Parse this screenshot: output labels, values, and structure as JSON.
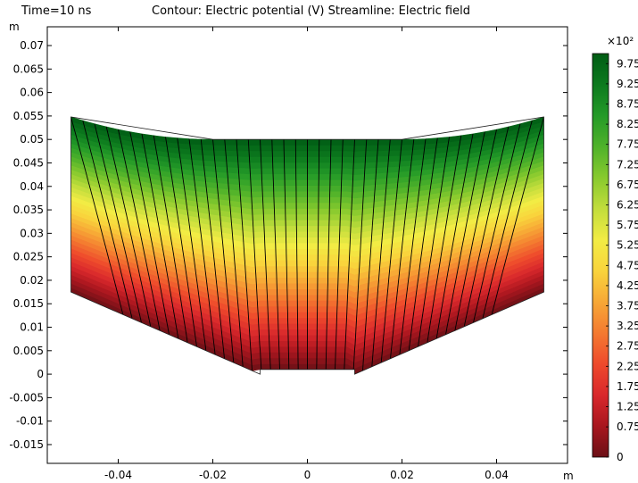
{
  "header": {
    "time": "Time=10 ns",
    "title": "Contour: Electric potential (V)  Streamline: Electric field"
  },
  "chart_data": {
    "type": "heatmap",
    "title": "Contour: Electric potential (V)  Streamline: Electric field",
    "xlabel": "m",
    "ylabel": "m",
    "xlim": [
      -0.055,
      0.055
    ],
    "ylim": [
      -0.019,
      0.074
    ],
    "x_ticks": [
      "-0.04",
      "-0.02",
      "0",
      "0.02",
      "0.04"
    ],
    "x_tick_values": [
      -0.04,
      -0.02,
      0,
      0.02,
      0.04
    ],
    "y_ticks": [
      "0.07",
      "0.065",
      "0.06",
      "0.055",
      "0.05",
      "0.045",
      "0.04",
      "0.035",
      "0.03",
      "0.025",
      "0.02",
      "0.015",
      "0.01",
      "0.005",
      "0",
      "-0.005",
      "-0.01",
      "-0.015"
    ],
    "y_tick_values": [
      0.07,
      0.065,
      0.06,
      0.055,
      0.05,
      0.045,
      0.04,
      0.035,
      0.03,
      0.025,
      0.02,
      0.015,
      0.01,
      0.005,
      0,
      -0.005,
      -0.01,
      -0.015
    ],
    "domain_outline": [
      [
        -0.05,
        0.0175
      ],
      [
        -0.05,
        0.0548
      ],
      [
        -0.02,
        0.05
      ],
      [
        0.02,
        0.05
      ],
      [
        0.05,
        0.0548
      ],
      [
        0.05,
        0.0175
      ],
      [
        0.01,
        0
      ],
      [
        0.01,
        0.001
      ],
      [
        -0.01,
        0.001
      ],
      [
        -0.01,
        0
      ]
    ],
    "electrode_high": {
      "potential": 1000,
      "boundary": "top arc"
    },
    "electrode_ground": {
      "potential": 0,
      "boundary": "bottom"
    },
    "contour_levels": [
      0,
      25,
      50,
      75,
      100,
      125,
      150,
      175,
      200,
      225,
      250,
      275,
      300,
      325,
      350,
      375,
      400,
      425,
      450,
      475,
      500,
      525,
      550,
      575,
      600,
      625,
      650,
      675,
      700,
      725,
      750,
      775,
      800,
      825,
      850,
      875,
      900,
      925,
      950,
      975,
      1000
    ],
    "streamline_count": 41,
    "colormap": [
      "#6b1016",
      "#a8161e",
      "#d9282c",
      "#ee4a2c",
      "#f47a30",
      "#f7a836",
      "#f9d43c",
      "#f2ec44",
      "#c2dd3c",
      "#88ca2e",
      "#4fb22a",
      "#249a28",
      "#0c7a1e",
      "#005c14"
    ],
    "colorbar": {
      "multiplier": "×10²",
      "labels": [
        "9.75",
        "9.25",
        "8.75",
        "8.25",
        "7.75",
        "7.25",
        "6.75",
        "6.25",
        "5.75",
        "5.25",
        "4.75",
        "4.25",
        "3.75",
        "3.25",
        "2.75",
        "2.25",
        "1.75",
        "1.25",
        "0.75",
        "0"
      ],
      "values": [
        9.75,
        9.25,
        8.75,
        8.25,
        7.75,
        7.25,
        6.75,
        6.25,
        5.75,
        5.25,
        4.75,
        4.25,
        3.75,
        3.25,
        2.75,
        2.25,
        1.75,
        1.25,
        0.75,
        0
      ],
      "range": [
        0,
        10
      ]
    }
  }
}
